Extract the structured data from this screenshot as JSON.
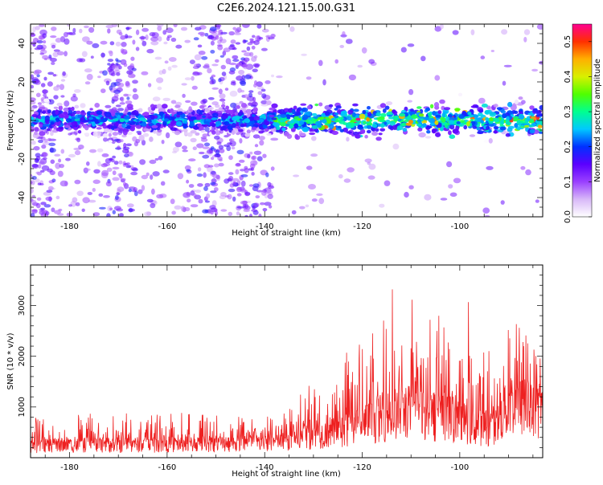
{
  "title": "C2E6.2024.121.15.00.G31",
  "chart_data": [
    {
      "type": "heatmap",
      "xlabel": "Height of straight line (km)",
      "ylabel": "Frequency (Hz)",
      "xlim": [
        -188,
        -83
      ],
      "ylim": [
        -50,
        50
      ],
      "x_ticks": [
        -180,
        -160,
        -140,
        -120,
        -100
      ],
      "y_ticks": [
        -40,
        -20,
        0,
        20,
        40
      ],
      "colorbar": {
        "label": "Normalized spectral amplitude",
        "range": [
          0,
          0.55
        ],
        "ticks": [
          0.0,
          0.1,
          0.2,
          0.3,
          0.4,
          0.5
        ],
        "colors": [
          "#ffffff",
          "#d8b8f8",
          "#9a40ff",
          "#5a00ff",
          "#0030ff",
          "#00c8ff",
          "#00ff90",
          "#50ff00",
          "#d8f000",
          "#ffb000",
          "#ff3000",
          "#ff0090"
        ]
      },
      "band": {
        "center_hz": 0,
        "half_width_hz": 5,
        "strong_region_x": [
          -138,
          -83
        ]
      },
      "grid": false
    },
    {
      "type": "line",
      "xlabel": "Height of straight line (km)",
      "ylabel": "SNR (10 * v/v)",
      "xlim": [
        -188,
        -83
      ],
      "ylim": [
        0,
        3800
      ],
      "x_ticks": [
        -180,
        -160,
        -140,
        -120,
        -100
      ],
      "y_ticks": [
        1000,
        2000,
        3000
      ],
      "color": "#ee2020",
      "envelope_points": {
        "x": [
          -188,
          -180,
          -170,
          -160,
          -150,
          -140,
          -135,
          -132,
          -130,
          -126,
          -122,
          -118,
          -115,
          -114,
          -112,
          -110,
          -108,
          -106,
          -104,
          -102,
          -100,
          -98,
          -96,
          -94,
          -92,
          -90,
          -89,
          -87,
          -85,
          -83
        ],
        "baseline": [
          250,
          270,
          280,
          290,
          300,
          330,
          360,
          420,
          480,
          550,
          650,
          800,
          900,
          950,
          1000,
          1000,
          950,
          900,
          900,
          850,
          800,
          700,
          650,
          650,
          800,
          1100,
          1200,
          1100,
          1000,
          1000
        ],
        "peak": [
          800,
          850,
          900,
          900,
          850,
          820,
          950,
          1400,
          2250,
          1850,
          2350,
          2450,
          3100,
          3600,
          2450,
          3200,
          2950,
          3400,
          3150,
          2700,
          2900,
          3150,
          2700,
          2300,
          2500,
          2850,
          3300,
          2600,
          2250,
          2000
        ]
      },
      "grid": false
    }
  ]
}
